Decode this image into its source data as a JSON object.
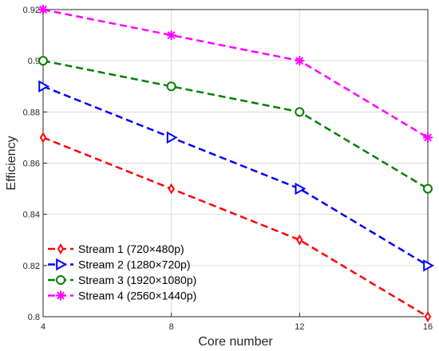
{
  "chart_data": {
    "type": "line",
    "title": "",
    "xlabel": "Core number",
    "ylabel": "Efficiency",
    "x": [
      4,
      8,
      12,
      16
    ],
    "xlim": [
      4,
      16
    ],
    "ylim": [
      0.8,
      0.92
    ],
    "xticks": [
      "4",
      "8",
      "12",
      "16"
    ],
    "yticks": [
      "0.8",
      "0.82",
      "0.84",
      "0.86",
      "0.88",
      "0.9",
      "0.92"
    ],
    "grid": true,
    "legend_position": "bottom-left",
    "series": [
      {
        "name": "Stream 1 (720×480p)",
        "values": [
          0.87,
          0.85,
          0.83,
          0.8
        ],
        "color": "#ff0000",
        "marker": "diamond"
      },
      {
        "name": "Stream 2 (1280×720p)",
        "values": [
          0.89,
          0.87,
          0.85,
          0.82
        ],
        "color": "#0000ff",
        "marker": "triangle-right"
      },
      {
        "name": "Stream 3 (1920×1080p)",
        "values": [
          0.9,
          0.89,
          0.88,
          0.85
        ],
        "color": "#008000",
        "marker": "circle"
      },
      {
        "name": "Stream 4 (2560×1440p)",
        "values": [
          0.92,
          0.91,
          0.9,
          0.87
        ],
        "color": "#ff00ff",
        "marker": "asterisk"
      }
    ]
  }
}
